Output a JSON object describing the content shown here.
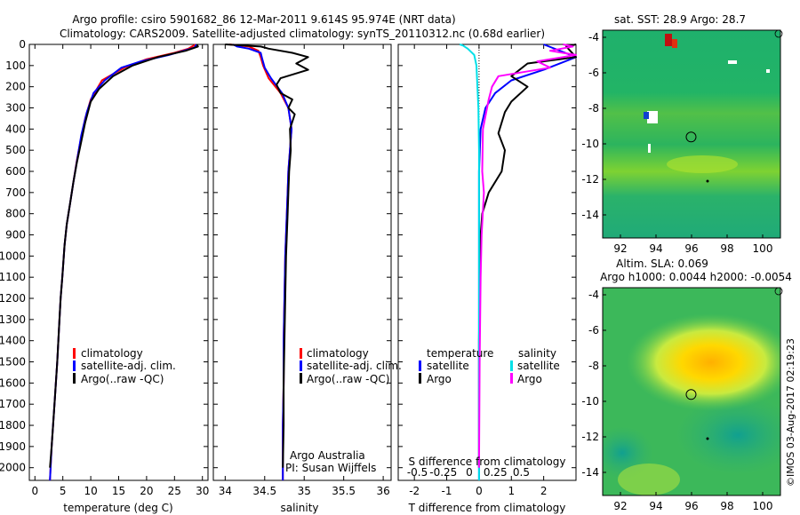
{
  "header": {
    "line1": "Argo profile: csiro 5901682_86 12-Mar-2011 9.614S 95.974E (NRT data)",
    "line2": "Climatology: CARS2009. Satellite-adjusted climatology: synTS_20110312.nc (0.68d earlier)"
  },
  "side_label": "©IMOS 03-Aug-2017 02:19:23",
  "colors": {
    "climatology": "#ff0000",
    "satellite": "#0000ff",
    "argo": "#000000",
    "sat_s": "#00e0e8",
    "argo_s": "#ff00ff"
  },
  "chart_data": [
    {
      "id": "temperature",
      "type": "line",
      "xlabel": "temperature (deg C)",
      "xlim": [
        -1,
        31
      ],
      "ylim": [
        2060,
        0
      ],
      "xticks": [
        0,
        5,
        10,
        15,
        20,
        25,
        30
      ],
      "xtick_labels": [
        "0",
        "5",
        "10",
        "15",
        "20",
        "25",
        "30"
      ],
      "yticks": [
        0,
        100,
        200,
        300,
        400,
        500,
        600,
        700,
        800,
        900,
        1000,
        1100,
        1200,
        1300,
        1400,
        1500,
        1600,
        1700,
        1800,
        1900,
        2000
      ],
      "ytick_labels": [
        "0",
        "100",
        "200",
        "300",
        "400",
        "500",
        "600",
        "700",
        "800",
        "900",
        "1000",
        "1100",
        "1200",
        "1300",
        "1400",
        "1500",
        "1600",
        "1700",
        "1800",
        "1900",
        "2000"
      ],
      "legend": [
        "climatology",
        "satellite-adj. clim.",
        "Argo(..raw -QC)"
      ],
      "series": [
        {
          "name": "climatology",
          "color": "#ff0000",
          "points": [
            [
              28.8,
              0
            ],
            [
              27.5,
              20
            ],
            [
              25,
              40
            ],
            [
              20,
              70
            ],
            [
              16,
              110
            ],
            [
              12,
              170
            ],
            [
              10,
              260
            ],
            [
              9,
              350
            ],
            [
              8.2,
              450
            ],
            [
              7.5,
              550
            ],
            [
              6.9,
              650
            ],
            [
              6.3,
              750
            ],
            [
              5.7,
              850
            ],
            [
              5.3,
              950
            ],
            [
              4.9,
              1100
            ],
            [
              4.6,
              1200
            ],
            [
              4.4,
              1300
            ],
            [
              4.0,
              1500
            ],
            [
              3.5,
              1700
            ],
            [
              3.0,
              1900
            ],
            [
              2.7,
              2060
            ]
          ]
        },
        {
          "name": "satellite-adj. clim.",
          "color": "#0000ff",
          "points": [
            [
              28.9,
              0
            ],
            [
              28.6,
              15
            ],
            [
              24,
              50
            ],
            [
              19,
              80
            ],
            [
              15.5,
              110
            ],
            [
              12.5,
              170
            ],
            [
              10.5,
              230
            ],
            [
              9.3,
              320
            ],
            [
              8.3,
              430
            ],
            [
              7.6,
              540
            ],
            [
              6.9,
              650
            ],
            [
              6.3,
              750
            ],
            [
              5.7,
              850
            ],
            [
              5.3,
              950
            ],
            [
              4.9,
              1100
            ],
            [
              4.6,
              1200
            ],
            [
              4.4,
              1300
            ],
            [
              4.0,
              1500
            ],
            [
              3.5,
              1700
            ],
            [
              3.0,
              1900
            ],
            [
              2.7,
              2060
            ]
          ]
        },
        {
          "name": "Argo(..raw -QC)",
          "color": "#000000",
          "points": [
            [
              29.0,
              0
            ],
            [
              29.2,
              10
            ],
            [
              27,
              30
            ],
            [
              22,
              60
            ],
            [
              17.5,
              100
            ],
            [
              14,
              150
            ],
            [
              11.5,
              210
            ],
            [
              10,
              270
            ],
            [
              9,
              370
            ],
            [
              8.3,
              460
            ],
            [
              7.5,
              560
            ],
            [
              6.9,
              650
            ],
            [
              6.3,
              750
            ],
            [
              5.7,
              850
            ],
            [
              5.3,
              950
            ],
            [
              4.9,
              1100
            ],
            [
              4.6,
              1200
            ],
            [
              4.4,
              1300
            ],
            [
              4.0,
              1500
            ],
            [
              3.5,
              1700
            ],
            [
              3.0,
              1900
            ],
            [
              2.7,
              2000
            ]
          ]
        }
      ]
    },
    {
      "id": "salinity",
      "type": "line",
      "xlabel": "salinity",
      "xlim": [
        33.85,
        36.1
      ],
      "ylim": [
        2060,
        0
      ],
      "xticks": [
        34,
        34.5,
        35,
        35.5,
        36
      ],
      "xtick_labels": [
        "34",
        "34.5",
        "35",
        "35.5",
        "36"
      ],
      "legend": [
        "climatology",
        "satellite-adj. clim.",
        "Argo(..raw -QC)"
      ],
      "annotation": [
        "Argo Australia",
        "PI: Susan Wijffels"
      ],
      "series": [
        {
          "name": "climatology",
          "color": "#ff0000",
          "points": [
            [
              34.05,
              0
            ],
            [
              34.3,
              10
            ],
            [
              34.42,
              30
            ],
            [
              34.45,
              60
            ],
            [
              34.48,
              100
            ],
            [
              34.55,
              160
            ],
            [
              34.7,
              230
            ],
            [
              34.8,
              300
            ],
            [
              34.84,
              400
            ],
            [
              34.82,
              500
            ],
            [
              34.8,
              600
            ],
            [
              34.79,
              700
            ],
            [
              34.78,
              800
            ],
            [
              34.76,
              1000
            ],
            [
              34.75,
              1200
            ],
            [
              34.74,
              1400
            ],
            [
              34.74,
              1600
            ],
            [
              34.73,
              1800
            ],
            [
              34.73,
              2060
            ]
          ]
        },
        {
          "name": "satellite-adj. clim.",
          "color": "#0000ff",
          "points": [
            [
              34.1,
              0
            ],
            [
              34.15,
              10
            ],
            [
              34.3,
              20
            ],
            [
              34.45,
              40
            ],
            [
              34.47,
              70
            ],
            [
              34.5,
              110
            ],
            [
              34.58,
              160
            ],
            [
              34.72,
              230
            ],
            [
              34.8,
              300
            ],
            [
              34.84,
              400
            ],
            [
              34.82,
              500
            ],
            [
              34.8,
              600
            ],
            [
              34.79,
              700
            ],
            [
              34.78,
              800
            ],
            [
              34.76,
              1000
            ],
            [
              34.75,
              1200
            ],
            [
              34.74,
              1400
            ],
            [
              34.74,
              1600
            ],
            [
              34.73,
              1800
            ],
            [
              34.73,
              2060
            ]
          ]
        },
        {
          "name": "Argo(..raw -QC)",
          "color": "#000000",
          "points": [
            [
              34.0,
              0
            ],
            [
              34.45,
              10
            ],
            [
              34.55,
              20
            ],
            [
              34.85,
              40
            ],
            [
              35.05,
              60
            ],
            [
              34.9,
              90
            ],
            [
              35.05,
              120
            ],
            [
              34.7,
              160
            ],
            [
              34.65,
              190
            ],
            [
              34.7,
              230
            ],
            [
              34.85,
              260
            ],
            [
              34.8,
              300
            ],
            [
              34.88,
              330
            ],
            [
              34.82,
              400
            ],
            [
              34.83,
              500
            ],
            [
              34.81,
              600
            ],
            [
              34.8,
              700
            ],
            [
              34.79,
              800
            ],
            [
              34.77,
              1000
            ],
            [
              34.76,
              1200
            ],
            [
              34.75,
              1400
            ],
            [
              34.74,
              1600
            ],
            [
              34.74,
              1800
            ],
            [
              34.73,
              2000
            ]
          ]
        }
      ]
    },
    {
      "id": "difference",
      "type": "line",
      "xlabel": "T difference from climatology",
      "xlim": [
        -2.5,
        3
      ],
      "ylim": [
        2060,
        0
      ],
      "xticks": [
        -2,
        -1,
        0,
        1,
        2
      ],
      "xtick_labels": [
        "-2",
        "-1",
        "0",
        "1",
        "2"
      ],
      "top_axis_label": "S difference from climatology",
      "top_ticks": [
        -0.5,
        -0.25,
        0,
        0.25,
        0.5
      ],
      "top_tick_labels": [
        "-0.5",
        "-0.25",
        "0",
        "0.25",
        "0.5"
      ],
      "legend_temperature_title": "temperature",
      "legend_salinity_title": "salinity",
      "legend_temperature": [
        "satellite",
        "Argo"
      ],
      "legend_salinity": [
        "satellite",
        "Argo"
      ],
      "series": [
        {
          "name": "temperature satellite",
          "color": "#0000ff",
          "points": [
            [
              2.0,
              0
            ],
            [
              3.0,
              60
            ],
            [
              2.0,
              120
            ],
            [
              1.0,
              170
            ],
            [
              0.5,
              230
            ],
            [
              0.2,
              300
            ],
            [
              0.05,
              400
            ],
            [
              0,
              600
            ],
            [
              0,
              1000
            ],
            [
              0,
              2060
            ]
          ]
        },
        {
          "name": "temperature Argo",
          "color": "#000000",
          "points": [
            [
              3.0,
              0
            ],
            [
              2.7,
              10
            ],
            [
              3.0,
              60
            ],
            [
              1.5,
              90
            ],
            [
              1.0,
              150
            ],
            [
              1.5,
              200
            ],
            [
              1.0,
              270
            ],
            [
              0.8,
              320
            ],
            [
              0.6,
              420
            ],
            [
              0.8,
              500
            ],
            [
              0.7,
              600
            ],
            [
              0.3,
              700
            ],
            [
              0.1,
              800
            ],
            [
              0.05,
              900
            ],
            [
              0.02,
              1100
            ],
            [
              0,
              1400
            ],
            [
              0,
              2000
            ]
          ]
        },
        {
          "name": "salinity satellite",
          "color": "#00e0e8",
          "points": [
            [
              -0.6,
              0
            ],
            [
              -0.5,
              5
            ],
            [
              -0.35,
              20
            ],
            [
              -0.15,
              50
            ],
            [
              -0.08,
              100
            ],
            [
              -0.05,
              200
            ],
            [
              -0.02,
              300
            ],
            [
              0,
              500
            ],
            [
              0,
              2060
            ]
          ]
        },
        {
          "name": "salinity Argo",
          "color": "#ff00ff",
          "points": [
            [
              2.6,
              0
            ],
            [
              2.9,
              10
            ],
            [
              2.2,
              30
            ],
            [
              3.0,
              50
            ],
            [
              1.8,
              80
            ],
            [
              2.2,
              110
            ],
            [
              0.6,
              150
            ],
            [
              0.4,
              200
            ],
            [
              0.3,
              260
            ],
            [
              0.12,
              400
            ],
            [
              0.1,
              600
            ],
            [
              0.15,
              700
            ],
            [
              0.08,
              900
            ],
            [
              0.05,
              1100
            ],
            [
              0.02,
              1500
            ],
            [
              0,
              2000
            ]
          ]
        }
      ]
    },
    {
      "id": "sst_map",
      "type": "heatmap",
      "title": "sat. SST: 28.9 Argo: 28.7",
      "xlim": [
        91,
        101
      ],
      "ylim": [
        -15.3,
        -3.6
      ],
      "xticks": [
        92,
        94,
        96,
        98,
        100
      ],
      "xtick_labels": [
        "92",
        "94",
        "96",
        "98",
        "100"
      ],
      "yticks": [
        -4,
        -6,
        -8,
        -10,
        -12,
        -14
      ],
      "ytick_labels": [
        "-4",
        "-6",
        "-8",
        "-10",
        "-12",
        "-14"
      ],
      "argo_position": [
        95.974,
        -9.614
      ]
    },
    {
      "id": "sla_map",
      "type": "heatmap",
      "title_line1": "Altim. SLA: 0.069",
      "title_line2": "Argo h1000: 0.0044 h2000: -0.0054",
      "xlim": [
        91,
        101
      ],
      "ylim": [
        -15.3,
        -3.6
      ],
      "xticks": [
        92,
        94,
        96,
        98,
        100
      ],
      "xtick_labels": [
        "92",
        "94",
        "96",
        "98",
        "100"
      ],
      "yticks": [
        -4,
        -6,
        -8,
        -10,
        -12,
        -14
      ],
      "ytick_labels": [
        "-4",
        "-6",
        "-8",
        "-10",
        "-12",
        "-14"
      ],
      "argo_position": [
        95.974,
        -9.614
      ]
    }
  ]
}
